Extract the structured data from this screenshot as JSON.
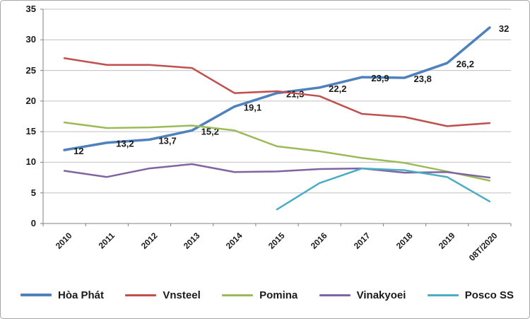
{
  "chart_data": {
    "type": "line",
    "title": "",
    "categories": [
      "2010",
      "2011",
      "2012",
      "2013",
      "2014",
      "2015",
      "2016",
      "2017",
      "2018",
      "2019",
      "08T/2020"
    ],
    "y_axis": {
      "min": 0,
      "max": 35,
      "step": 5,
      "ticks": [
        "0",
        "5",
        "10",
        "15",
        "20",
        "25",
        "30",
        "35"
      ]
    },
    "grid": true,
    "legend_position": "bottom",
    "colors": {
      "axis": "#808080",
      "gridline": "#c0c0c0",
      "label": "#1a1a1a"
    },
    "series": [
      {
        "key": "hoa-phat",
        "name": "Hòa Phát",
        "color": "#4F81BD",
        "width": 3.5,
        "values": [
          12,
          13.2,
          13.7,
          15.2,
          19.1,
          21.3,
          22.2,
          23.9,
          23.8,
          26.2,
          32
        ],
        "data_labels": [
          "12",
          "13,2",
          "13,7",
          "15,2",
          "19,1",
          "21,3",
          "22,2",
          "23,9",
          "23,8",
          "26,2",
          "32"
        ]
      },
      {
        "key": "vnsteel",
        "name": "Vnsteel",
        "color": "#C0504D",
        "width": 2.5,
        "values": [
          27,
          25.9,
          25.9,
          25.4,
          21.3,
          21.6,
          20.8,
          17.9,
          17.4,
          15.9,
          16.4
        ]
      },
      {
        "key": "pomina",
        "name": "Pomina",
        "color": "#9BBB59",
        "width": 2.5,
        "values": [
          16.5,
          15.6,
          15.7,
          16,
          15.2,
          12.6,
          11.8,
          10.7,
          9.9,
          8.5,
          7
        ]
      },
      {
        "key": "vinakyoei",
        "name": "Vinakyoei",
        "color": "#8064A2",
        "width": 2.5,
        "values": [
          8.6,
          7.6,
          9,
          9.7,
          8.4,
          8.5,
          8.9,
          9,
          8.3,
          8.4,
          7.5
        ]
      },
      {
        "key": "posco-ss",
        "name": "Posco SS",
        "color": "#4BACC6",
        "width": 2.5,
        "values": [
          null,
          null,
          null,
          null,
          null,
          2.3,
          6.6,
          9,
          8.7,
          7.6,
          3.6
        ]
      }
    ]
  }
}
